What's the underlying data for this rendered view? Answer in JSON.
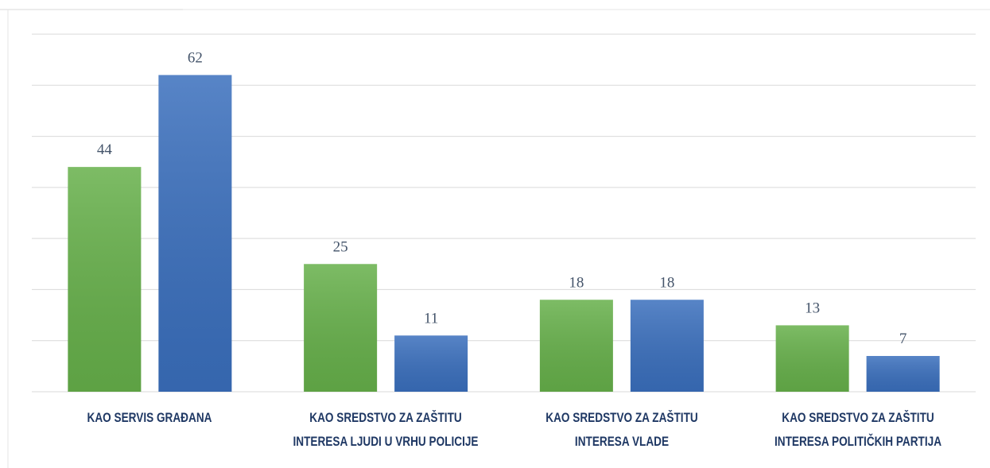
{
  "chart_data": {
    "type": "bar",
    "categories": [
      "KAO SERVIS GRAĐANA",
      "KAO SREDSTVO ZA ZAŠTITU\nINTERESA LJUDI U VRHU POLICIJE",
      "KAO SREDSTVO ZA ZAŠTITU\nINTERESA VLADE",
      "KAO SREDSTVO ZA ZAŠTITU\nINTERESA POLITIČKIH PARTIJA"
    ],
    "series": [
      {
        "color": "#66b04a",
        "values": [
          44,
          25,
          18,
          13
        ]
      },
      {
        "color": "#3a6fbd",
        "values": [
          62,
          11,
          18,
          7
        ]
      }
    ],
    "ylim": [
      0,
      70
    ],
    "yticks": [
      0,
      10,
      20,
      30,
      40,
      50,
      60,
      70
    ],
    "grid": true
  }
}
